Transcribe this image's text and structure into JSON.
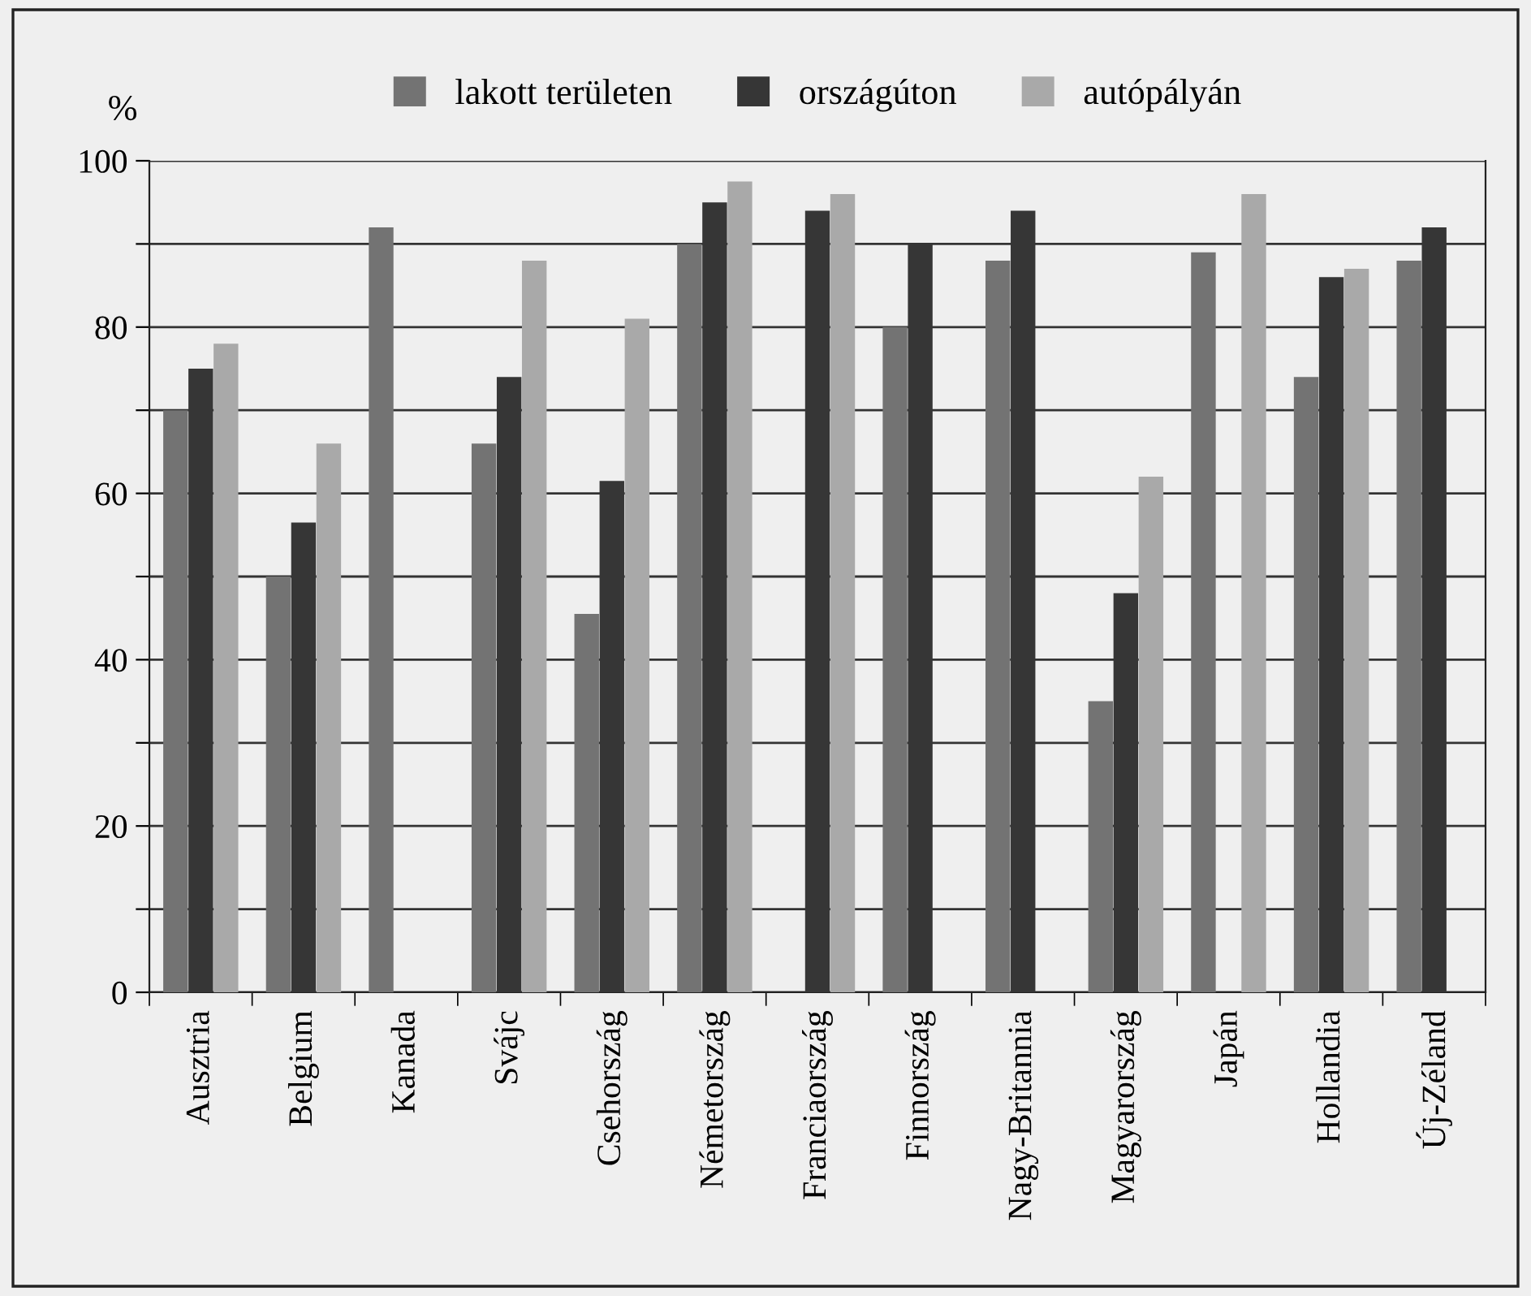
{
  "chart_data": {
    "type": "bar",
    "ylabel": "%",
    "categories": [
      "Ausztria",
      "Belgium",
      "Kanada",
      "Svájc",
      "Csehország",
      "Németország",
      "Franciaország",
      "Finnország",
      "Nagy-Britannia",
      "Magyarország",
      "Japán",
      "Hollandia",
      "Új-Zéland"
    ],
    "series": [
      {
        "name": "lakott területen",
        "color": "#737373",
        "values": [
          70,
          50,
          92,
          66,
          45.5,
          90,
          null,
          80,
          88,
          35,
          89,
          74,
          88
        ]
      },
      {
        "name": "országúton",
        "color": "#363636",
        "values": [
          75,
          56.5,
          null,
          74,
          61.5,
          95,
          94,
          90,
          94,
          48,
          null,
          86,
          92
        ]
      },
      {
        "name": "autópályán",
        "color": "#a9a9a9",
        "values": [
          78,
          66,
          null,
          88,
          81,
          97.5,
          96,
          null,
          null,
          62,
          96,
          87,
          null
        ]
      }
    ],
    "ylim": [
      0,
      100
    ],
    "yticks": [
      0,
      {
        "value": 10,
        "label": null
      },
      20,
      {
        "value": 30,
        "label": null
      },
      40,
      {
        "value": 50,
        "label": null
      },
      60,
      {
        "value": 70,
        "label": null
      },
      80,
      {
        "value": 90,
        "label": null
      },
      100
    ],
    "grid": "y",
    "legend": "top"
  }
}
